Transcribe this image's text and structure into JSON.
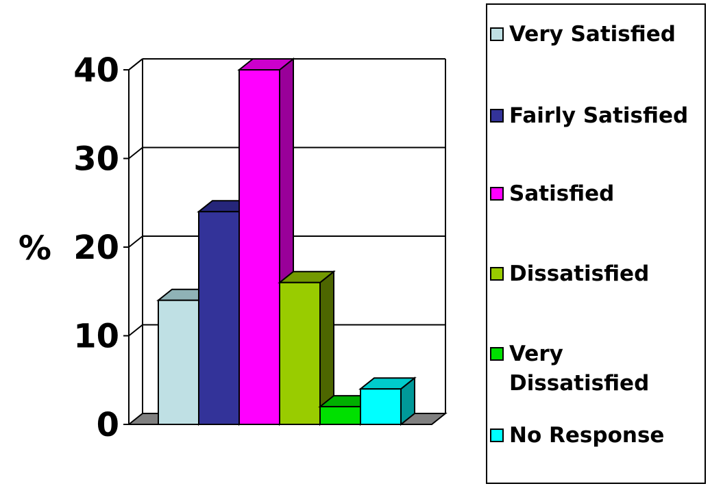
{
  "chart_data": {
    "type": "bar",
    "categories": [
      "Very Satisfied",
      "Fairly Satisfied",
      "Satisfied",
      "Dissatisfied",
      "Very Dissatisfied",
      "No Response"
    ],
    "values": [
      14,
      24,
      40,
      16,
      2,
      4
    ],
    "colors": [
      "#BFE0E4",
      "#333399",
      "#FF00FF",
      "#99CC00",
      "#00E000",
      "#00FFFF"
    ],
    "side_colors": [
      "#7FA3A8",
      "#1F1F66",
      "#990099",
      "#4D6600",
      "#008000",
      "#009999"
    ],
    "top_colors": [
      "#8FB2B6",
      "#26267A",
      "#CC00CC",
      "#739900",
      "#00B000",
      "#00CCCC"
    ],
    "ylabel": "%",
    "ylim": [
      0,
      40
    ],
    "yticks": [
      "0",
      "10",
      "20",
      "30",
      "40"
    ],
    "grid": true,
    "legend_position": "right",
    "floor_color": "#808080"
  }
}
